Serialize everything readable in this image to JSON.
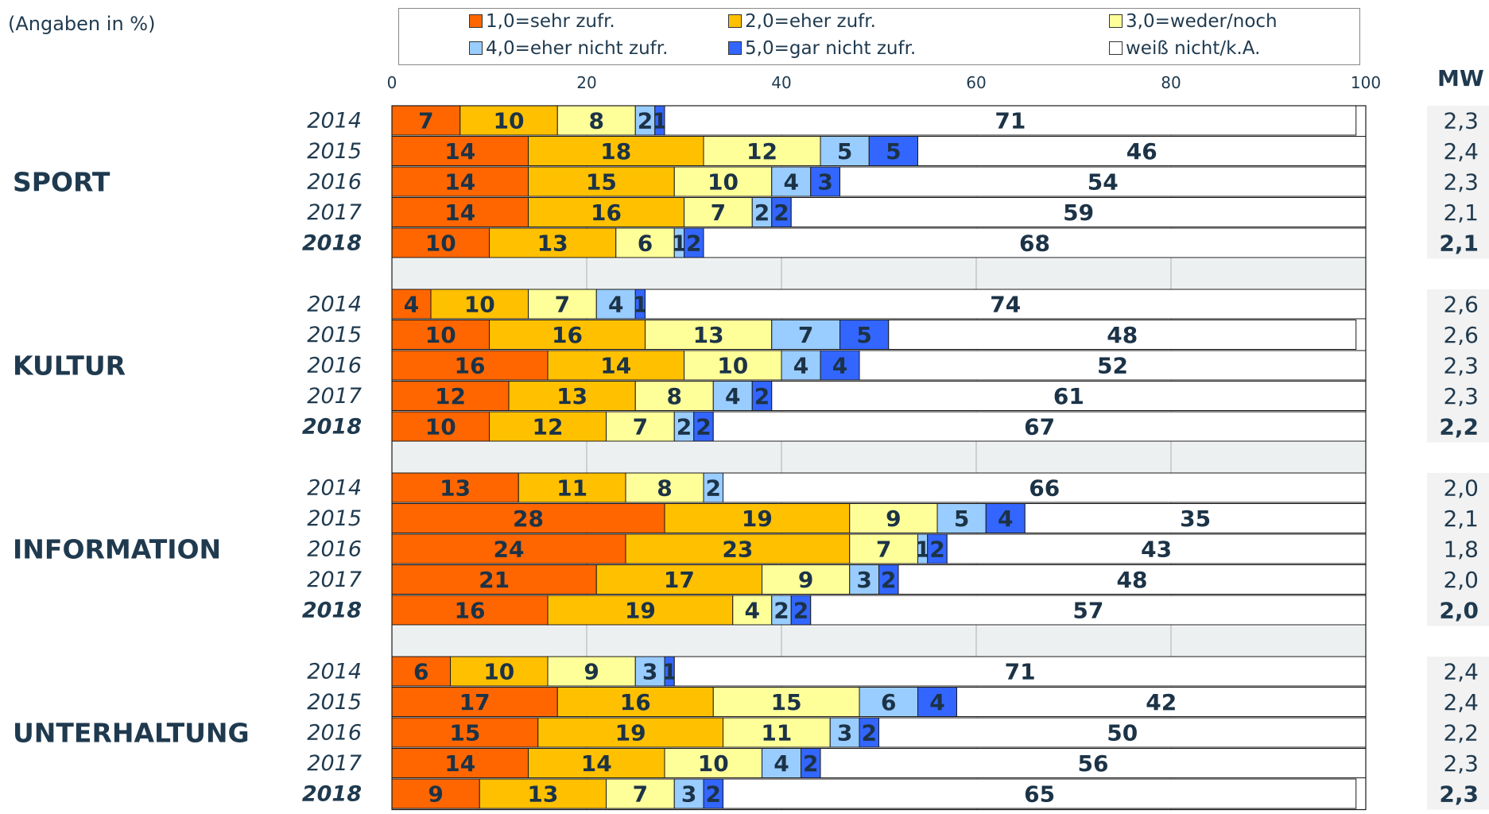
{
  "unit_note": "(Angaben in %)",
  "mw_header": "MW",
  "chart_data": {
    "type": "bar",
    "orientation": "horizontal",
    "stacked": true,
    "xlim": [
      0,
      100
    ],
    "x_ticks": [
      "0",
      "20",
      "40",
      "60",
      "80",
      "100"
    ],
    "grid": true,
    "legend": {
      "placement": "top",
      "entries": [
        {
          "label": "1,0=sehr zufr.",
          "color": "#ff6600"
        },
        {
          "label": "2,0=eher zufr.",
          "color": "#ffc000"
        },
        {
          "label": "3,0=weder/noch",
          "color": "#ffff99"
        },
        {
          "label": "4,0=eher nicht zufr.",
          "color": "#99ccff"
        },
        {
          "label": "5,0=gar nicht zufr.",
          "color": "#3366ff"
        },
        {
          "label": "weiß nicht/k.A.",
          "color": "#ffffff"
        }
      ]
    },
    "series_colors": [
      "#ff6600",
      "#ffc000",
      "#ffff99",
      "#99ccff",
      "#3366ff",
      "#ffffff"
    ],
    "groups": [
      {
        "name": "SPORT",
        "rows": [
          {
            "year": "2014",
            "values": [
              7,
              10,
              8,
              2,
              1,
              71
            ],
            "mw": "2,3"
          },
          {
            "year": "2015",
            "values": [
              14,
              18,
              12,
              5,
              5,
              46
            ],
            "mw": "2,4"
          },
          {
            "year": "2016",
            "values": [
              14,
              15,
              10,
              4,
              3,
              54
            ],
            "mw": "2,3"
          },
          {
            "year": "2017",
            "values": [
              14,
              16,
              7,
              2,
              2,
              59
            ],
            "mw": "2,1"
          },
          {
            "year": "2018",
            "values": [
              10,
              13,
              6,
              1,
              2,
              68
            ],
            "mw": "2,1",
            "bold": true
          }
        ]
      },
      {
        "name": "KULTUR",
        "rows": [
          {
            "year": "2014",
            "values": [
              4,
              10,
              7,
              4,
              1,
              74
            ],
            "mw": "2,6"
          },
          {
            "year": "2015",
            "values": [
              10,
              16,
              13,
              7,
              5,
              48
            ],
            "mw": "2,6"
          },
          {
            "year": "2016",
            "values": [
              16,
              14,
              10,
              4,
              4,
              52
            ],
            "mw": "2,3"
          },
          {
            "year": "2017",
            "values": [
              12,
              13,
              8,
              4,
              2,
              61
            ],
            "mw": "2,3"
          },
          {
            "year": "2018",
            "values": [
              10,
              12,
              7,
              2,
              2,
              67
            ],
            "mw": "2,2",
            "bold": true
          }
        ]
      },
      {
        "name": "INFORMATION",
        "rows": [
          {
            "year": "2014",
            "values": [
              13,
              11,
              8,
              2,
              0,
              66
            ],
            "mw": "2,0"
          },
          {
            "year": "2015",
            "values": [
              28,
              19,
              9,
              5,
              4,
              35
            ],
            "mw": "2,1"
          },
          {
            "year": "2016",
            "values": [
              24,
              23,
              7,
              1,
              2,
              43
            ],
            "mw": "1,8"
          },
          {
            "year": "2017",
            "values": [
              21,
              17,
              9,
              3,
              2,
              48
            ],
            "mw": "2,0"
          },
          {
            "year": "2018",
            "values": [
              16,
              19,
              4,
              2,
              2,
              57
            ],
            "mw": "2,0",
            "bold": true
          }
        ]
      },
      {
        "name": "UNTERHALTUNG",
        "rows": [
          {
            "year": "2014",
            "values": [
              6,
              10,
              9,
              3,
              1,
              71
            ],
            "mw": "2,4"
          },
          {
            "year": "2015",
            "values": [
              17,
              16,
              15,
              6,
              4,
              42
            ],
            "mw": "2,4"
          },
          {
            "year": "2016",
            "values": [
              15,
              19,
              11,
              3,
              2,
              50
            ],
            "mw": "2,2"
          },
          {
            "year": "2017",
            "values": [
              14,
              14,
              10,
              4,
              2,
              56
            ],
            "mw": "2,3"
          },
          {
            "year": "2018",
            "values": [
              9,
              13,
              7,
              3,
              2,
              65
            ],
            "mw": "2,3",
            "bold": true
          }
        ]
      }
    ]
  }
}
